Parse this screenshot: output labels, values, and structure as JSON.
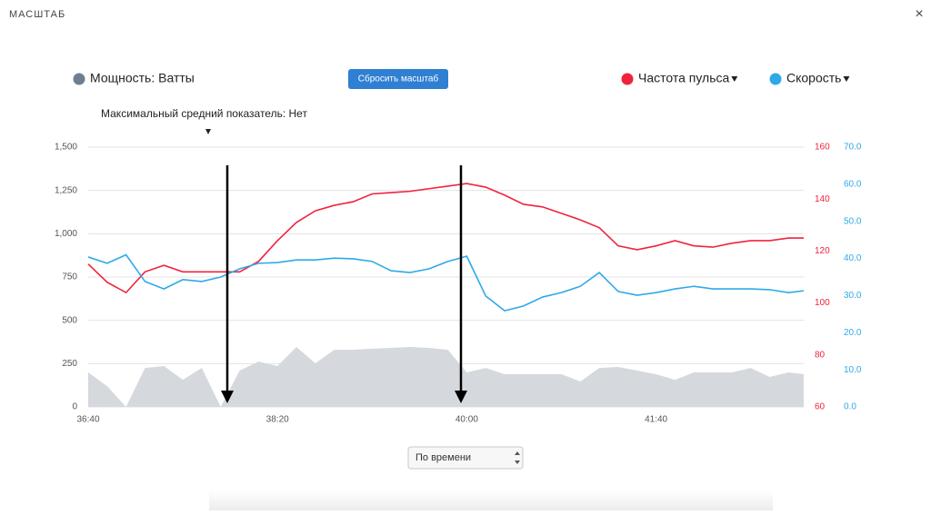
{
  "header": {
    "title": "МАСШТАБ",
    "close": "×"
  },
  "controls": {
    "reset_button": "Сбросить масштаб",
    "max_average": "Максимальный средний показатель: Нет",
    "x_mode": "По времени"
  },
  "chart_data": {
    "type": "line",
    "x": [
      2200,
      2210,
      2220,
      2230,
      2240,
      2250,
      2260,
      2270,
      2280,
      2290,
      2300,
      2310,
      2320,
      2330,
      2340,
      2350,
      2360,
      2370,
      2380,
      2390,
      2400,
      2410,
      2420,
      2430,
      2440,
      2450,
      2460,
      2470,
      2480,
      2490,
      2500,
      2510,
      2520,
      2530,
      2540,
      2550,
      2560,
      2570,
      2578
    ],
    "xlim": [
      2200,
      2578
    ],
    "xticks": [
      {
        "value": 2200,
        "label": "36:40"
      },
      {
        "value": 2300,
        "label": "38:20"
      },
      {
        "value": 2400,
        "label": "40:00"
      },
      {
        "value": 2500,
        "label": "41:40"
      }
    ],
    "ylim": [
      0,
      1500
    ],
    "yticks": [
      0,
      250,
      500,
      750,
      {
        "value": 1000,
        "label": "1,000"
      },
      {
        "value": 1250,
        "label": "1,250"
      },
      {
        "value": 1500,
        "label": "1,500"
      }
    ],
    "y2lim": [
      60,
      160
    ],
    "y2ticks": [
      60,
      80,
      100,
      120,
      140,
      160
    ],
    "y3lim": [
      0,
      70
    ],
    "y3ticks": [
      {
        "value": 0,
        "label": "0.0"
      },
      {
        "value": 10,
        "label": "10.0"
      },
      {
        "value": 20,
        "label": "20.0"
      },
      {
        "value": 30,
        "label": "30.0"
      },
      {
        "value": 40,
        "label": "40.0"
      },
      {
        "value": 50,
        "label": "50.0"
      },
      {
        "value": 60,
        "label": "60.0"
      },
      {
        "value": 70,
        "label": "70.0"
      }
    ],
    "grid": true,
    "series": [
      {
        "name": "Мощность: Ватты",
        "kind": "area",
        "color": "#d5d9dd",
        "legend_color": "#6e7f92",
        "axis": "y",
        "values": [
          200,
          120,
          0,
          225,
          236,
          157,
          225,
          0,
          210,
          262,
          236,
          346,
          252,
          330,
          330,
          336,
          341,
          346,
          341,
          330,
          199,
          225,
          189,
          189,
          189,
          189,
          147,
          225,
          231,
          210,
          189,
          157,
          199,
          199,
          199,
          225,
          173,
          199,
          189
        ]
      },
      {
        "name": "Частота пульса",
        "kind": "line",
        "color": "#f0233d",
        "axis": "y2",
        "values": [
          115,
          108,
          104,
          112,
          114.5,
          112,
          112,
          112,
          112,
          116,
          124,
          131,
          135.5,
          137.6,
          139,
          142,
          142.5,
          143,
          144,
          145,
          146,
          144.6,
          141.5,
          138,
          137,
          134.5,
          132,
          129,
          122,
          120.5,
          122,
          124,
          122,
          121.5,
          123,
          124,
          124,
          125,
          125
        ]
      },
      {
        "name": "Скорость",
        "kind": "line",
        "color": "#2ea9e8",
        "axis": "y3",
        "values": [
          40.4,
          38.7,
          41,
          33.8,
          31.8,
          34.3,
          33.8,
          35,
          37.2,
          38.7,
          38.9,
          39.6,
          39.6,
          40.1,
          39.9,
          39.2,
          36.7,
          36.2,
          37.2,
          39.2,
          40.6,
          29.9,
          25.9,
          27.2,
          29.6,
          30.8,
          32.5,
          36.2,
          31.1,
          30.1,
          30.8,
          31.8,
          32.5,
          31.8,
          31.8,
          31.8,
          31.6,
          30.8,
          31.3
        ]
      }
    ]
  }
}
